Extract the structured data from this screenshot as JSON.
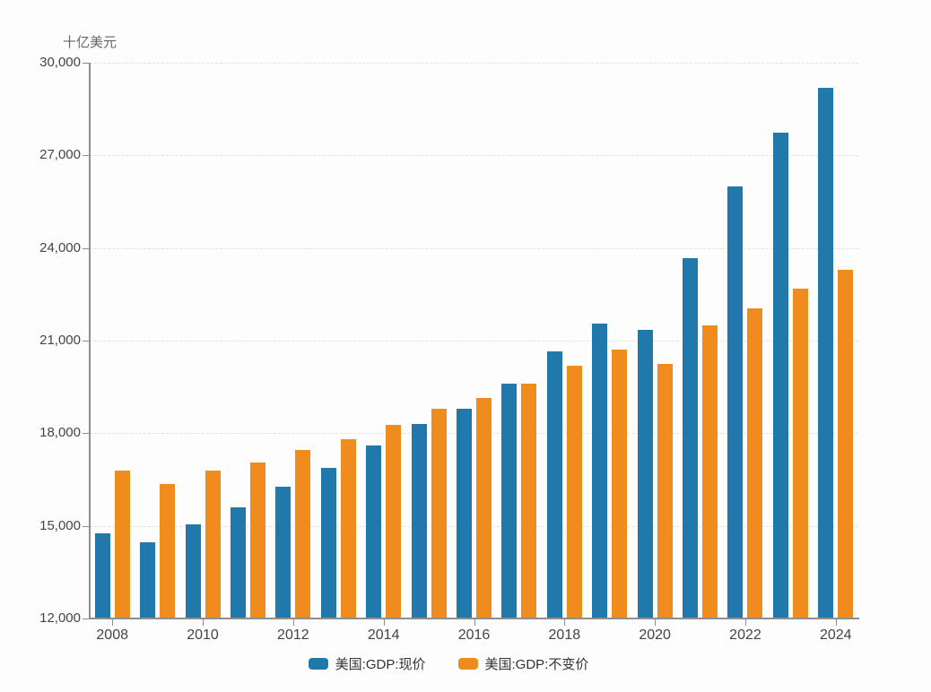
{
  "page": {
    "background": "#fdfdfd"
  },
  "chart_data": {
    "type": "bar",
    "title": "",
    "ylabel": "十亿美元",
    "categories": [
      "2008",
      "2009",
      "2010",
      "2011",
      "2012",
      "2013",
      "2014",
      "2015",
      "2016",
      "2017",
      "2018",
      "2019",
      "2020",
      "2021",
      "2022",
      "2023",
      "2024"
    ],
    "series": [
      {
        "name": "美国:GDP:现价",
        "color": "#2179ab",
        "values": [
          14770,
          14478,
          15049,
          15600,
          16254,
          16881,
          17608,
          18295,
          18805,
          19612,
          20657,
          21540,
          21354,
          23681,
          26007,
          27721,
          29185
        ]
      },
      {
        "name": "美国:GDP:不变价",
        "color": "#f08b1e",
        "values": [
          16790,
          16350,
          16793,
          17053,
          17444,
          17812,
          18262,
          18800,
          19142,
          19612,
          20194,
          20716,
          20234,
          21495,
          22035,
          22671,
          23305
        ]
      }
    ],
    "ylim": [
      12000,
      30000
    ],
    "y_tick_labels": [
      "12,000",
      "15,000",
      "18,000",
      "21,000",
      "24,000",
      "27,000",
      "30,000"
    ],
    "x_tick_labels": [
      "2008",
      "2010",
      "2012",
      "2014",
      "2016",
      "2018",
      "2020",
      "2022",
      "2024"
    ],
    "x_tick_every": 2,
    "grid": "horizontal-dashed",
    "legend_position": "bottom-center"
  }
}
